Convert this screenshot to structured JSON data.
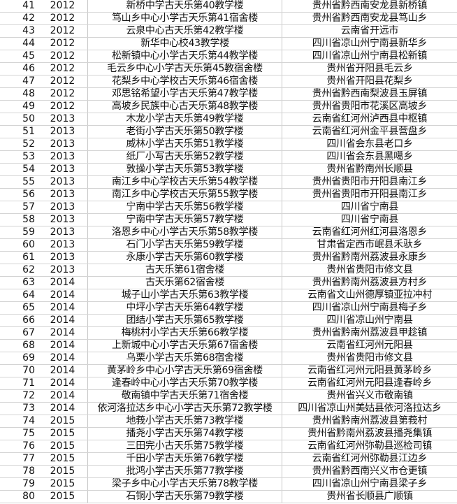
{
  "rows": [
    {
      "no": "41",
      "year": "2012",
      "name": "新桥中学古天乐第40教学楼",
      "location": "贵州省黔西南安龙县新桥镇"
    },
    {
      "no": "42",
      "year": "2012",
      "name": "笃山乡中心小学古天乐第41宿舍楼",
      "location": "贵州省黔西南安龙县笃山乡"
    },
    {
      "no": "43",
      "year": "2012",
      "name": "云泉中心古天乐第42教学楼",
      "location": "云南省开远市"
    },
    {
      "no": "44",
      "year": "2012",
      "name": "新华中心校43教学楼",
      "location": "四川省凉山州宁南县新华乡"
    },
    {
      "no": "45",
      "year": "2012",
      "name": "松新镇中心小学古天乐第44教学楼",
      "location": "四川省凉山州宁南县松新镇"
    },
    {
      "no": "46",
      "year": "2012",
      "name": "毛云乡中心小学古天乐第45教宿舍楼",
      "location": "贵州省开阳县毛云乡"
    },
    {
      "no": "47",
      "year": "2012",
      "name": "花梨乡中心学校古天乐第46宿舍楼",
      "location": "贵州省开阳县花梨乡"
    },
    {
      "no": "48",
      "year": "2012",
      "name": "邓思铭希望小学古天乐第47教学楼",
      "location": "贵州省黔西南梨波县玉屏镇"
    },
    {
      "no": "49",
      "year": "2012",
      "name": "高坡乡民族中心古天乐第48教学楼",
      "location": "贵州省贵阳市花溪区高坡乡"
    },
    {
      "no": "50",
      "year": "2013",
      "name": "木龙小学古天乐第49教学楼",
      "location": "云南省红河州泸西县中枢镇"
    },
    {
      "no": "51",
      "year": "2013",
      "name": "老街小学古天乐第50教学楼",
      "location": "云南省红河州金平县营盘乡"
    },
    {
      "no": "52",
      "year": "2013",
      "name": "威林小学古天乐第51教学楼",
      "location": "四川省会东县老口乡"
    },
    {
      "no": "53",
      "year": "2013",
      "name": "纸厂小写古天乐第52教学楼",
      "location": "四川省会东县黑噶乡"
    },
    {
      "no": "54",
      "year": "2013",
      "name": "敦操小学古天乐第53教学楼",
      "location": "贵州省黔南州长顺县"
    },
    {
      "no": "55",
      "year": "2013",
      "name": "南江乡中心学校古天乐第54教学楼",
      "location": "贵州省贵阳市开阳县南江乡"
    },
    {
      "no": "56",
      "year": "2013",
      "name": "南江乡中心学校古天乐第55教学楼",
      "location": "贵州省贵阳市开阳县南江乡"
    },
    {
      "no": "57",
      "year": "2013",
      "name": "宁南中学古天乐第56教学楼",
      "location": "四川省宁南县"
    },
    {
      "no": "58",
      "year": "2013",
      "name": "宁南中学古天乐第57教学楼",
      "location": "四川省宁南县"
    },
    {
      "no": "59",
      "year": "2013",
      "name": "洛恩乡中心小学古天乐第58教学楼",
      "location": "云南省红河州红河县洛恩乡"
    },
    {
      "no": "60",
      "year": "2013",
      "name": "石门小学古天乐第59教学楼",
      "location": "甘肃省定西市岷县禾驮乡"
    },
    {
      "no": "61",
      "year": "2013",
      "name": "永康小学古天乐第60教学楼",
      "location": "贵州省黔南州荔波县永康乡"
    },
    {
      "no": "62",
      "year": "2013",
      "name": "古天乐第61宿舍楼",
      "location": "贵州省贵阳市修文县"
    },
    {
      "no": "63",
      "year": "2014",
      "name": "古天乐第62宿舍楼",
      "location": "贵州省黔南州荔波县方村乡"
    },
    {
      "no": "64",
      "year": "2014",
      "name": "城子山小学古天乐第63教学楼",
      "location": "云南省文山州德厚镇亚拉冲村"
    },
    {
      "no": "65",
      "year": "2014",
      "name": "中坪小学古天乐第64教学楼",
      "location": "四川省凉山州宁南县梅子乡"
    },
    {
      "no": "66",
      "year": "2014",
      "name": "团结小学古天乐第65教学楼",
      "location": "四川省凉山州宁南县"
    },
    {
      "no": "67",
      "year": "2014",
      "name": "梅桃村小学古天乐第66教学楼",
      "location": "贵州省黔南州荔波县甲趁镇"
    },
    {
      "no": "68",
      "year": "2014",
      "name": "上新城中心小学古天乐第67宿舍楼",
      "location": "云南省红河州元阳县"
    },
    {
      "no": "69",
      "year": "2014",
      "name": "乌栗小学古天乐第68宿舍楼",
      "location": "贵州省贵阳市修文县"
    },
    {
      "no": "70",
      "year": "2014",
      "name": "黄茅岭乡中心小学古天乐第69宿舍楼",
      "location": "云南省红河州元阳县黄茅岭乡"
    },
    {
      "no": "71",
      "year": "2014",
      "name": "逢春岭中心小学古天乐第70教学楼",
      "location": "云南省红河州元阳县逢春岭乡"
    },
    {
      "no": "72",
      "year": "2014",
      "name": "敬南镇中学古天乐第71宿舍楼",
      "location": "贵州省兴义市敬南镇"
    },
    {
      "no": "73",
      "year": "2014",
      "name": "依河洛拉达乡中心小学古天乐第72教学楼",
      "location": "四川省凉山州美姑县依河洛拉达乡"
    },
    {
      "no": "74",
      "year": "2015",
      "name": "地莪小学古天乐第73教学楼",
      "location": "贵州省黔南州荔波县第莪村"
    },
    {
      "no": "75",
      "year": "2015",
      "name": "播尧小学古天乐第74教学楼",
      "location": "贵州省黔南州荔波县播尧集镇"
    },
    {
      "no": "76",
      "year": "2015",
      "name": "三田完小古天乐第75教学楼",
      "location": "云南省红河州弥勒县巡检司镇"
    },
    {
      "no": "77",
      "year": "2015",
      "name": "千田小学古天乐第76教学楼",
      "location": "云南省红河州弥勒县江边乡"
    },
    {
      "no": "78",
      "year": "2015",
      "name": "批鸿小学古天乐第77教学楼",
      "location": "贵州省黔西南兴义市仓更镇"
    },
    {
      "no": "79",
      "year": "2015",
      "name": "梁子乡中心小学古天乐第78教学楼",
      "location": "四川省凉山州宁南县梁子乡"
    },
    {
      "no": "80",
      "year": "2015",
      "name": "石铜小学古天乐第79教学楼",
      "location": "贵州省长顺县广顺镇"
    }
  ]
}
